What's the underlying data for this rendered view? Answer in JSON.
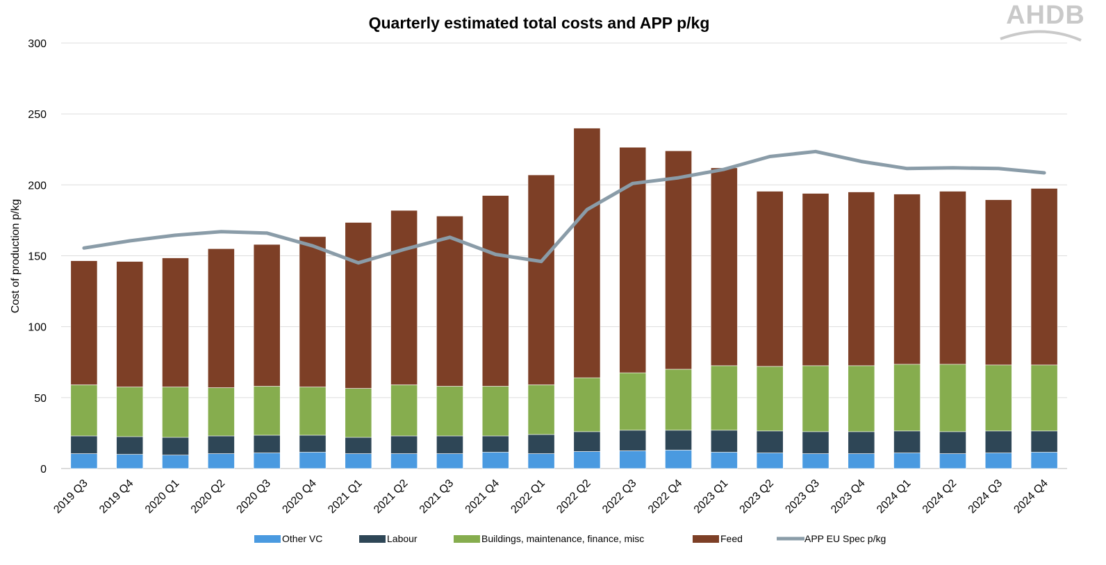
{
  "logo": {
    "text": "AHDB"
  },
  "chart_data": {
    "type": "bar",
    "stacked": true,
    "title": "Quarterly estimated total costs and APP p/kg",
    "xlabel": "",
    "ylabel": "Cost of production p/kg",
    "ylim": [
      0,
      300
    ],
    "yticks": [
      0,
      50,
      100,
      150,
      200,
      250,
      300
    ],
    "grid": true,
    "legend_position": "bottom",
    "categories": [
      "2019 Q3",
      "2019 Q4",
      "2020 Q1",
      "2020 Q2",
      "2020 Q3",
      "2020 Q4",
      "2021 Q1",
      "2021 Q2",
      "2021 Q3",
      "2021 Q4",
      "2022 Q1",
      "2022 Q2",
      "2022 Q3",
      "2022 Q4",
      "2023 Q1",
      "2023 Q2",
      "2023 Q3",
      "2023 Q4",
      "2024 Q1",
      "2024 Q2",
      "2024 Q3",
      "2024 Q4"
    ],
    "series": [
      {
        "name": "Other VC",
        "type": "bar",
        "color": "#4a9ae0",
        "values": [
          10.5,
          10,
          9.5,
          10.5,
          11,
          11.5,
          10.5,
          10.5,
          10.5,
          11.5,
          10.5,
          12,
          12.5,
          13,
          11.5,
          11,
          10.5,
          10.5,
          11,
          10.5,
          11,
          11.5
        ]
      },
      {
        "name": "Labour",
        "type": "bar",
        "color": "#2e4656",
        "values": [
          12.5,
          12.5,
          12.5,
          12.5,
          12.5,
          12,
          11.5,
          12.5,
          12.5,
          11.5,
          13.5,
          14,
          14.5,
          14,
          15.5,
          15.5,
          15.5,
          15.5,
          15.5,
          15.5,
          15.5,
          15
        ]
      },
      {
        "name": "Buildings, maintenance, finance, misc",
        "type": "bar",
        "color": "#86ad4e",
        "values": [
          36,
          35,
          35.5,
          34,
          34.5,
          34,
          34.5,
          36,
          35,
          35,
          35,
          38,
          40.5,
          43,
          45.5,
          45.5,
          46.5,
          46.5,
          47,
          47.5,
          46.5,
          46.5
        ]
      },
      {
        "name": "Feed",
        "type": "bar",
        "color": "#7d3f26",
        "values": [
          87.5,
          88.5,
          91,
          98,
          100,
          106,
          117,
          123,
          120,
          134.5,
          148,
          176,
          159,
          154,
          139.5,
          123.5,
          121.5,
          122.5,
          120,
          122,
          116.5,
          124.5
        ]
      },
      {
        "name": "APP EU Spec p/kg",
        "type": "line",
        "color": "#8a9ca8",
        "values": [
          155.5,
          160.5,
          164.5,
          167,
          166,
          157,
          145,
          154.5,
          163,
          151,
          146,
          182.5,
          201,
          205,
          211,
          220,
          223.5,
          216.5,
          211.5,
          212,
          211.5,
          208.5
        ]
      }
    ]
  }
}
